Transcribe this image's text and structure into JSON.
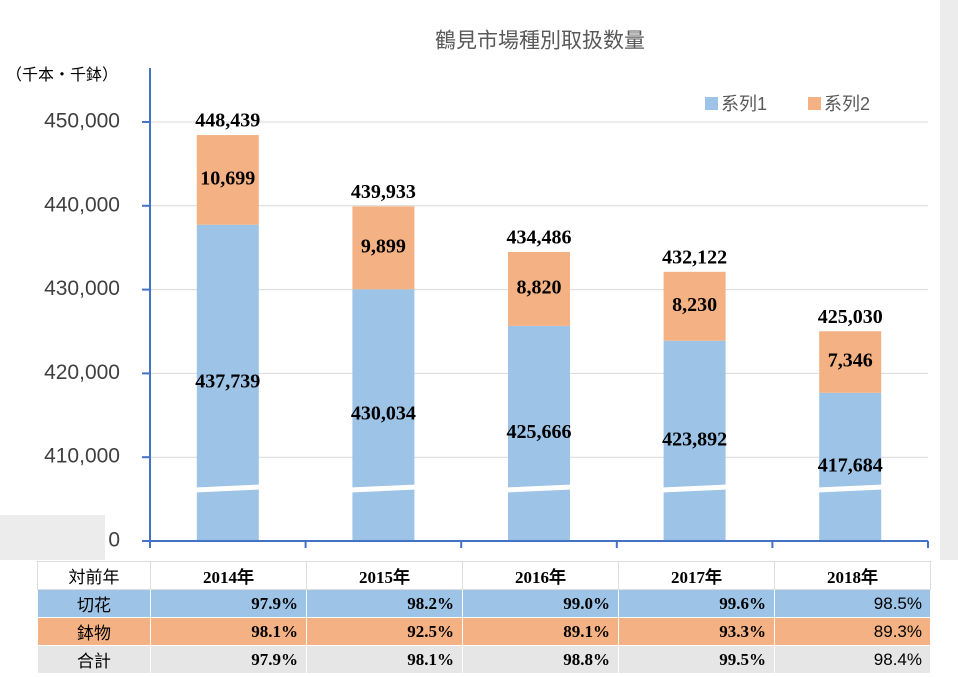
{
  "chart_data": {
    "type": "stacked-bar",
    "title": "鶴見市場種別取扱数量",
    "ylabel": "（千本・千鉢）",
    "categories": [
      "2014年",
      "2015年",
      "2016年",
      "2017年",
      "2018年"
    ],
    "series": [
      {
        "name": "系列1",
        "color": "#9dc3e6",
        "values": [
          437739,
          430034,
          425666,
          423892,
          417684
        ],
        "value_labels": [
          "437,739",
          "430,034",
          "425,666",
          "423,892",
          "417,684"
        ]
      },
      {
        "name": "系列2",
        "color": "#f4b183",
        "values": [
          10699,
          9899,
          8820,
          8230,
          7346
        ],
        "value_labels": [
          "10,699",
          "9,899",
          "8,820",
          "8,230",
          "7,346"
        ]
      }
    ],
    "total_labels": [
      "448,439",
      "439,933",
      "434,486",
      "432,122",
      "425,030"
    ],
    "ylim": [
      0,
      456000
    ],
    "yticks": [
      0,
      {
        "value": 410000,
        "label": "410,000"
      },
      {
        "value": 420000,
        "label": "420,000"
      },
      {
        "value": 430000,
        "label": "430,000"
      },
      {
        "value": 440000,
        "label": "440,000"
      },
      {
        "value": 450000,
        "label": "450,000"
      }
    ],
    "axis_break": true,
    "grid": true,
    "legend": "top-right"
  },
  "table": {
    "header": "対前年",
    "rows": [
      {
        "label": "切花",
        "color": "#9dc3e6",
        "values": [
          "97.9%",
          "98.2%",
          "99.0%",
          "99.6%",
          "98.5%"
        ]
      },
      {
        "label": "鉢物",
        "color": "#f4b183",
        "values": [
          "98.1%",
          "92.5%",
          "89.1%",
          "93.3%",
          "89.3%"
        ]
      },
      {
        "label": "合計",
        "color": "#e7e6e6",
        "values": [
          "97.9%",
          "98.1%",
          "98.8%",
          "99.5%",
          "98.4%"
        ]
      }
    ]
  }
}
